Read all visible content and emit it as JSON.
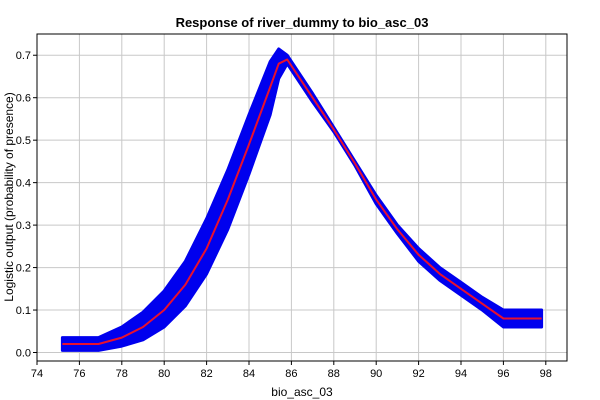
{
  "chart_data": {
    "type": "line",
    "title": "Response of river_dummy to bio_asc_03",
    "xlabel": "bio_asc_03",
    "ylabel": "Logistic output (probability of presence)",
    "xlim": [
      74,
      99
    ],
    "ylim": [
      -0.02,
      0.75
    ],
    "x_ticks": [
      "74",
      "76",
      "78",
      "80",
      "82",
      "84",
      "86",
      "88",
      "90",
      "92",
      "94",
      "96",
      "98"
    ],
    "y_ticks": [
      "0.0",
      "0.1",
      "0.2",
      "0.3",
      "0.4",
      "0.5",
      "0.6",
      "0.7"
    ],
    "grid": true,
    "legend": "none",
    "series": [
      {
        "role": "mean",
        "color": "#e8102e",
        "x": [
          75.2,
          76.9,
          78.0,
          79.0,
          80.0,
          81.0,
          82.0,
          83.0,
          84.0,
          85.0,
          85.4,
          85.8,
          87.0,
          88.0,
          89.0,
          90.0,
          91.0,
          92.0,
          93.0,
          94.0,
          95.0,
          96.0,
          97.8
        ],
        "y": [
          0.02,
          0.02,
          0.035,
          0.06,
          0.1,
          0.16,
          0.245,
          0.36,
          0.49,
          0.625,
          0.68,
          0.69,
          0.6,
          0.525,
          0.445,
          0.36,
          0.29,
          0.23,
          0.185,
          0.15,
          0.115,
          0.08,
          0.08
        ]
      },
      {
        "role": "band",
        "color": "#0000ee",
        "x": [
          75.2,
          76.9,
          78.0,
          79.0,
          80.0,
          81.0,
          82.0,
          83.0,
          84.0,
          85.0,
          85.4,
          85.8,
          87.0,
          88.0,
          89.0,
          90.0,
          91.0,
          92.0,
          93.0,
          94.0,
          95.0,
          96.0,
          97.8
        ],
        "upper": [
          0.035,
          0.035,
          0.06,
          0.095,
          0.145,
          0.215,
          0.315,
          0.43,
          0.56,
          0.685,
          0.715,
          0.7,
          0.61,
          0.53,
          0.45,
          0.37,
          0.3,
          0.245,
          0.2,
          0.165,
          0.13,
          0.1,
          0.1
        ],
        "lower": [
          0.005,
          0.005,
          0.015,
          0.03,
          0.06,
          0.11,
          0.185,
          0.29,
          0.42,
          0.56,
          0.645,
          0.68,
          0.59,
          0.52,
          0.44,
          0.35,
          0.28,
          0.215,
          0.17,
          0.135,
          0.1,
          0.06,
          0.06
        ]
      }
    ]
  }
}
